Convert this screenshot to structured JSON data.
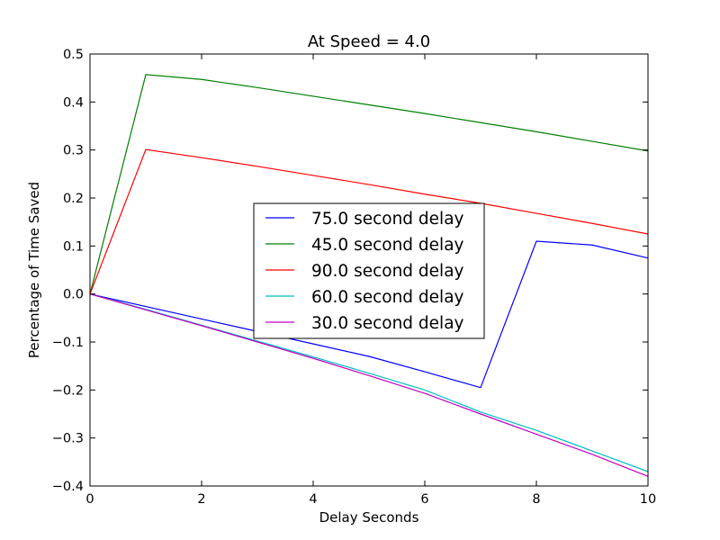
{
  "chart_data": {
    "type": "line",
    "title": "At Speed = 4.0",
    "xlabel": "Delay Seconds",
    "ylabel": "Percentage of Time Saved",
    "xlim": [
      0,
      10
    ],
    "ylim": [
      -0.4,
      0.5
    ],
    "xticks": [
      0,
      2,
      4,
      6,
      8,
      10
    ],
    "xtick_labels": [
      "0",
      "2",
      "4",
      "6",
      "8",
      "10"
    ],
    "yticks": [
      -0.4,
      -0.3,
      -0.2,
      -0.1,
      0.0,
      0.1,
      0.2,
      0.3,
      0.4,
      0.5
    ],
    "ytick_labels": [
      "−0.4",
      "−0.3",
      "−0.2",
      "−0.1",
      "0.0",
      "0.1",
      "0.2",
      "0.3",
      "0.4",
      "0.5"
    ],
    "grid": false,
    "legend_position": "center",
    "x": [
      0,
      1,
      2,
      3,
      4,
      5,
      6,
      7,
      8,
      9,
      10
    ],
    "series": [
      {
        "name": "75.0 second delay",
        "color": "#0000ff",
        "values": [
          0.0,
          -0.026,
          -0.052,
          -0.078,
          -0.104,
          -0.13,
          -0.162,
          -0.195,
          0.11,
          0.102,
          0.075
        ]
      },
      {
        "name": "45.0 second delay",
        "color": "#008000",
        "values": [
          0.0,
          0.457,
          0.447,
          0.43,
          0.412,
          0.394,
          0.376,
          0.357,
          0.338,
          0.318,
          0.298
        ]
      },
      {
        "name": "90.0 second delay",
        "color": "#ff0000",
        "values": [
          0.0,
          0.301,
          0.284,
          0.266,
          0.247,
          0.228,
          0.208,
          0.189,
          0.168,
          0.147,
          0.125
        ]
      },
      {
        "name": "60.0 second delay",
        "color": "#00bfbf",
        "values": [
          0.0,
          -0.032,
          -0.065,
          -0.098,
          -0.131,
          -0.165,
          -0.2,
          -0.246,
          -0.284,
          -0.327,
          -0.37
        ]
      },
      {
        "name": "30.0 second delay",
        "color": "#bf00bf",
        "values": [
          0.0,
          -0.033,
          -0.066,
          -0.1,
          -0.134,
          -0.17,
          -0.207,
          -0.25,
          -0.292,
          -0.334,
          -0.38
        ]
      }
    ]
  }
}
